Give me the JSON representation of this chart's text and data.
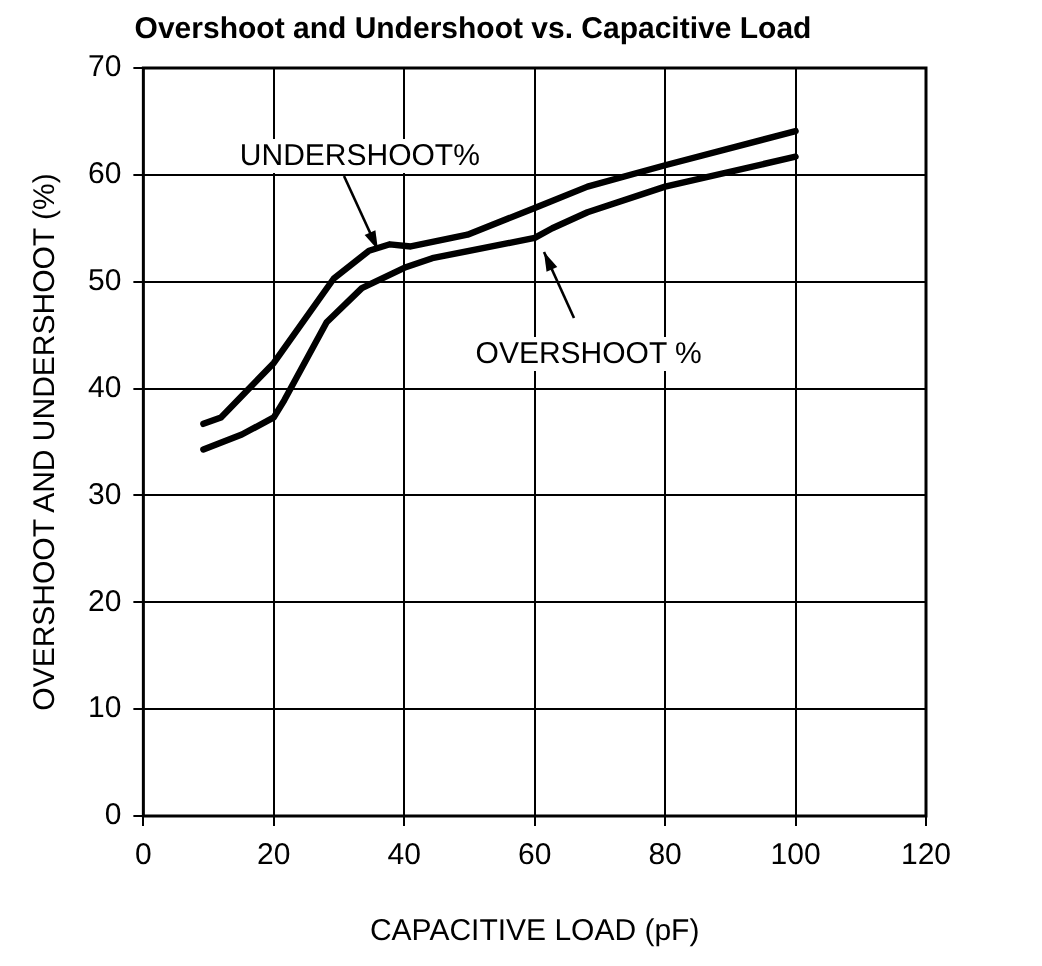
{
  "chart_data": {
    "type": "line",
    "title": "Overshoot and Undershoot vs. Capacitive Load",
    "xlabel": "CAPACITIVE LOAD (pF)",
    "ylabel": "OVERSHOOT AND UNDERSHOOT (%)",
    "xlim": [
      0,
      120
    ],
    "xticks": [
      0,
      20,
      40,
      60,
      80,
      100,
      120
    ],
    "ylim": [
      0,
      70
    ],
    "yticks": [
      0,
      10,
      20,
      30,
      40,
      50,
      60,
      70
    ],
    "grid": true,
    "marker": "none",
    "line_style": "solid",
    "annotations": [
      {
        "text": "UNDERSHOOT%",
        "x": 37.8,
        "y": 53.5
      },
      {
        "text": "OVERSHOOT %",
        "x": 60,
        "y": 54.1
      }
    ],
    "series": [
      {
        "color": "#000000",
        "x": [
          9.2,
          11.9,
          20,
          29.2,
          34.6,
          37.8,
          41,
          49.7,
          60,
          68.1,
          80,
          100
        ],
        "values": [
          36.7,
          37.3,
          42.4,
          50.3,
          52.9,
          53.5,
          53.3,
          54.4,
          56.9,
          58.9,
          60.9,
          64.1
        ]
      },
      {
        "color": "#000000",
        "x": [
          9.2,
          15.1,
          20,
          21.6,
          28.1,
          33.5,
          40,
          44.3,
          60,
          62.7,
          68.1,
          80,
          100
        ],
        "values": [
          34.3,
          35.7,
          37.3,
          38.9,
          46.2,
          49.4,
          51.3,
          52.2,
          54.1,
          55,
          56.5,
          58.9,
          61.7
        ]
      }
    ]
  }
}
